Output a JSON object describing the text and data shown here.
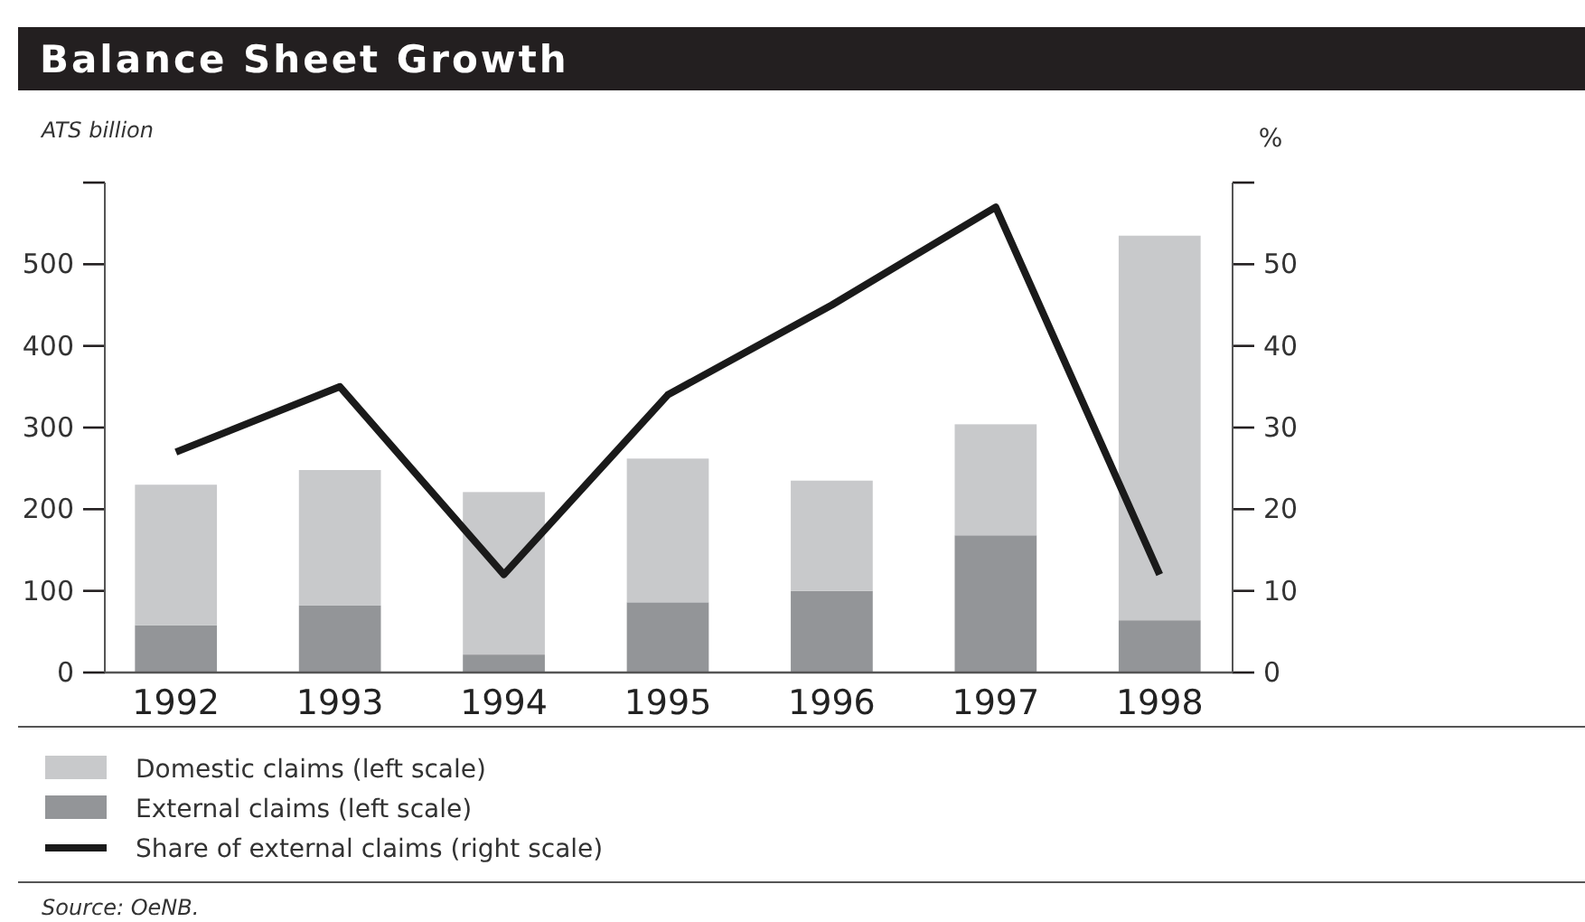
{
  "chart_data": {
    "type": "bar",
    "title": "Balance Sheet Growth",
    "ylabel": "ATS billion",
    "y2label": "%",
    "categories": [
      "1992",
      "1993",
      "1994",
      "1995",
      "1996",
      "1997",
      "1998"
    ],
    "stacked": true,
    "series": [
      {
        "name": "External claims (left scale)",
        "color": "#939598",
        "values": [
          58,
          82,
          22,
          86,
          100,
          168,
          64
        ]
      },
      {
        "name": "Domestic claims (left scale)",
        "color": "#c8c9cb",
        "values": [
          172,
          166,
          199,
          176,
          135,
          136,
          471
        ]
      },
      {
        "name": "Share of external claims (right scale)",
        "type": "line",
        "axis": "y2",
        "color": "#1a1a1a",
        "values": [
          27,
          35,
          12,
          34,
          45,
          57,
          12
        ]
      }
    ],
    "ylim": [
      0,
      600
    ],
    "yticks": [
      0,
      100,
      200,
      300,
      400,
      500,
      {
        "value": 600,
        "label": null
      }
    ],
    "y2lim": [
      0,
      60
    ],
    "y2ticks": [
      0,
      10,
      20,
      30,
      40,
      50,
      {
        "value": 60,
        "label": null
      }
    ],
    "legend": "bottom",
    "grid": false,
    "marker": "none",
    "line_style": "solid",
    "annotations": [
      "Source: OeNB."
    ]
  }
}
